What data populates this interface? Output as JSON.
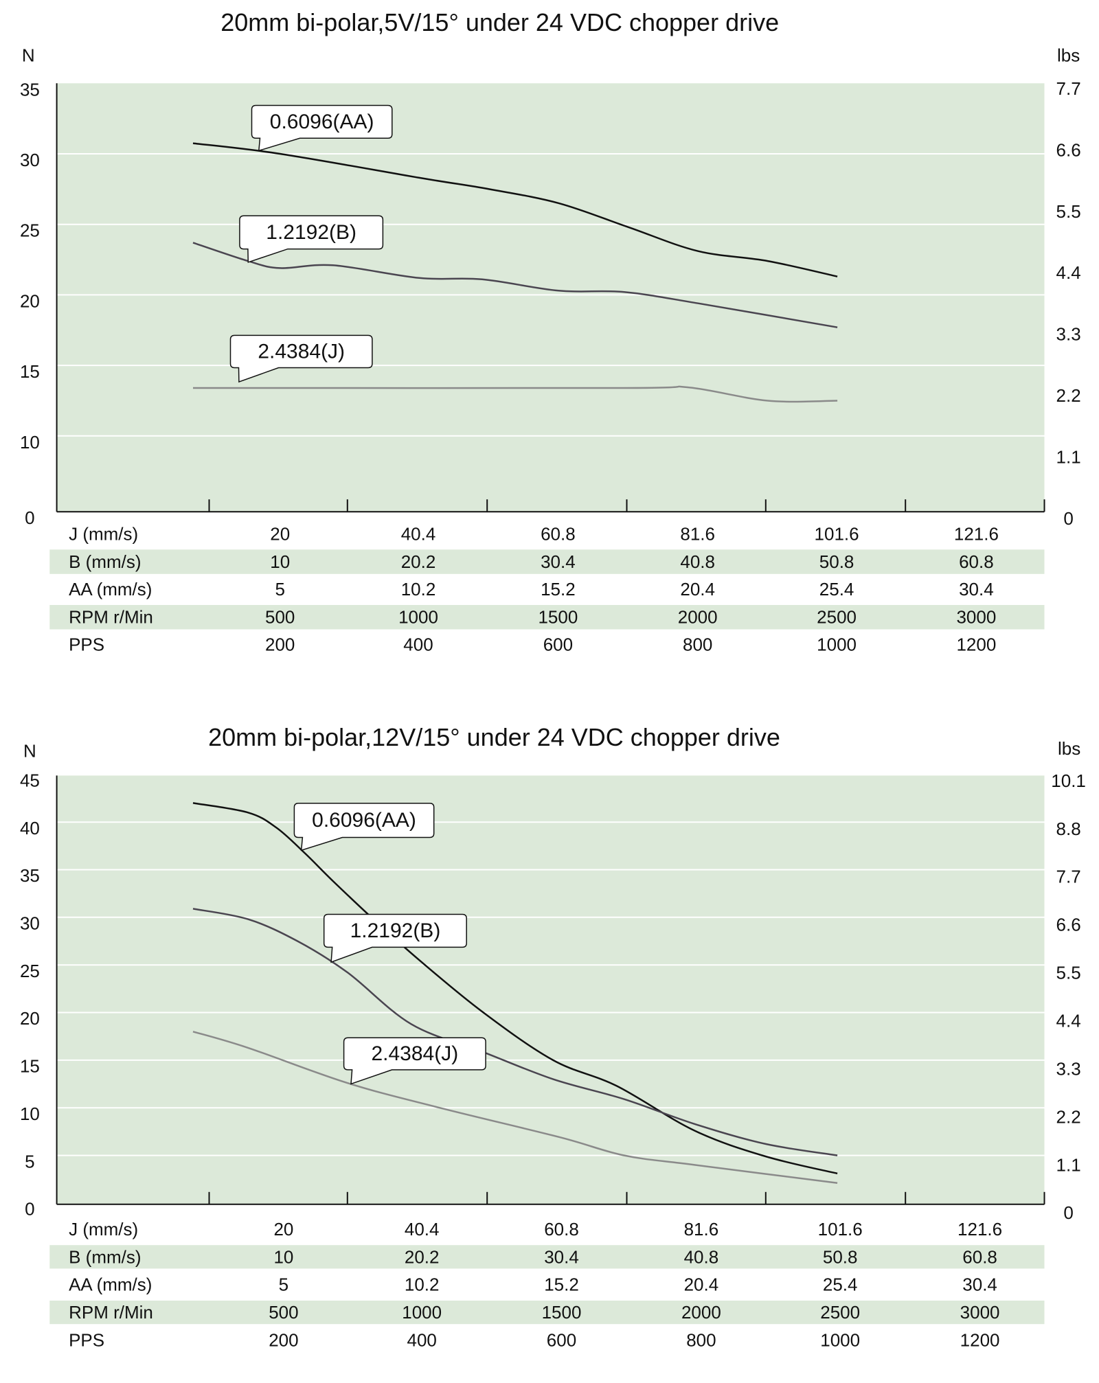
{
  "colors": {
    "plot_bg": "#dce9d9",
    "band_bg": "#dce9d9",
    "grid": "#ffffff",
    "AA": "#111111",
    "B": "#4a4550",
    "J": "#8a8a8a"
  },
  "chart_data": [
    {
      "type": "line",
      "title": "20mm bi-polar,5V/15° under 24 VDC chopper drive",
      "ylabel": "N",
      "ylabel_right": "lbs",
      "x_unit": "PPS",
      "y_ticks": [
        0,
        10,
        15,
        20,
        25,
        30,
        35
      ],
      "y_ticks_right": [
        "0",
        "1.1",
        "2.2",
        "3.3",
        "4.4",
        "5.5",
        "6.6",
        "7.7"
      ],
      "ylim": [
        0,
        35
      ],
      "grid": true,
      "series": [
        {
          "name": "0.6096(AA)",
          "key": "AA",
          "points": [
            [
              75,
              30.75
            ],
            [
              200,
              30.0
            ],
            [
              400,
              28.3
            ],
            [
              500,
              27.5
            ],
            [
              600,
              26.5
            ],
            [
              700,
              24.8
            ],
            [
              800,
              23.1
            ],
            [
              900,
              22.4
            ],
            [
              1000,
              21.3
            ]
          ]
        },
        {
          "name": "1.2192(B)",
          "key": "B",
          "points": [
            [
              75,
              23.7
            ],
            [
              154,
              22.4
            ],
            [
              200,
              21.9
            ],
            [
              276,
              22.1
            ],
            [
              400,
              21.2
            ],
            [
              490,
              21.1
            ],
            [
              600,
              20.3
            ],
            [
              694,
              20.2
            ],
            [
              800,
              19.4
            ],
            [
              1000,
              17.7
            ]
          ]
        },
        {
          "name": "2.4384(J)",
          "key": "J",
          "points": [
            [
              75,
              13.4
            ],
            [
              694,
              13.4
            ],
            [
              785,
              13.45
            ],
            [
              900,
              12.5
            ],
            [
              1000,
              12.5
            ]
          ]
        }
      ],
      "table": {
        "rows": [
          {
            "label": "J (mm/s)",
            "values": [
              "20",
              "40.4",
              "60.8",
              "81.6",
              "101.6",
              "121.6"
            ],
            "shaded": false
          },
          {
            "label": "B (mm/s)",
            "values": [
              "10",
              "20.2",
              "30.4",
              "40.8",
              "50.8",
              "60.8"
            ],
            "shaded": true
          },
          {
            "label": "AA (mm/s)",
            "values": [
              "5",
              "10.2",
              "15.2",
              "20.4",
              "25.4",
              "30.4"
            ],
            "shaded": false
          },
          {
            "label": "RPM r/Min",
            "values": [
              "500",
              "1000",
              "1500",
              "2000",
              "2500",
              "3000"
            ],
            "shaded": true
          },
          {
            "label": "PPS",
            "values": [
              "200",
              "400",
              "600",
              "800",
              "1000",
              "1200"
            ],
            "shaded": false
          }
        ]
      }
    },
    {
      "type": "line",
      "title": "20mm bi-polar,12V/15° under 24 VDC chopper drive",
      "ylabel": "N",
      "ylabel_right": "lbs",
      "x_unit": "PPS",
      "y_ticks": [
        0,
        5,
        10,
        15,
        20,
        25,
        30,
        35,
        40,
        45
      ],
      "y_ticks_right": [
        "0",
        "1.1",
        "2.2",
        "3.3",
        "4.4",
        "5.5",
        "6.6",
        "7.7",
        "8.8",
        "10.1"
      ],
      "ylim": [
        0,
        45
      ],
      "grid": true,
      "series": [
        {
          "name": "0.6096(AA)",
          "key": "AA",
          "points": [
            [
              75,
              42.0
            ],
            [
              154,
              41.0
            ],
            [
              195,
              39.4
            ],
            [
              236,
              36.7
            ],
            [
              276,
              33.8
            ],
            [
              337,
              29.6
            ],
            [
              400,
              25.5
            ],
            [
              490,
              20.1
            ],
            [
              592,
              15.0
            ],
            [
              683,
              12.3
            ],
            [
              795,
              7.6
            ],
            [
              897,
              4.9
            ],
            [
              1000,
              3.1
            ]
          ]
        },
        {
          "name": "1.2192(B)",
          "key": "B",
          "points": [
            [
              75,
              30.9
            ],
            [
              154,
              29.8
            ],
            [
              225,
              27.5
            ],
            [
              297,
              24.2
            ],
            [
              388,
              18.8
            ],
            [
              490,
              15.9
            ],
            [
              592,
              13.0
            ],
            [
              694,
              10.9
            ],
            [
              795,
              8.3
            ],
            [
              897,
              6.2
            ],
            [
              1000,
              5.0
            ]
          ]
        },
        {
          "name": "2.4384(J)",
          "key": "J",
          "points": [
            [
              75,
              18.0
            ],
            [
              154,
              16.3
            ],
            [
              297,
              12.6
            ],
            [
              429,
              10.0
            ],
            [
              602,
              6.9
            ],
            [
              694,
              5.0
            ],
            [
              795,
              4.0
            ],
            [
              1000,
              2.1
            ]
          ]
        }
      ],
      "table": {
        "rows": [
          {
            "label": "J (mm/s)",
            "values": [
              "20",
              "40.4",
              "60.8",
              "81.6",
              "101.6",
              "121.6"
            ],
            "shaded": false
          },
          {
            "label": "B (mm/s)",
            "values": [
              "10",
              "20.2",
              "30.4",
              "40.8",
              "50.8",
              "60.8"
            ],
            "shaded": true
          },
          {
            "label": "AA (mm/s)",
            "values": [
              "5",
              "10.2",
              "15.2",
              "20.4",
              "25.4",
              "30.4"
            ],
            "shaded": false
          },
          {
            "label": "RPM r/Min",
            "values": [
              "500",
              "1000",
              "1500",
              "2000",
              "2500",
              "3000"
            ],
            "shaded": true
          },
          {
            "label": "PPS",
            "values": [
              "200",
              "400",
              "600",
              "800",
              "1000",
              "1200"
            ],
            "shaded": false
          }
        ]
      }
    }
  ]
}
